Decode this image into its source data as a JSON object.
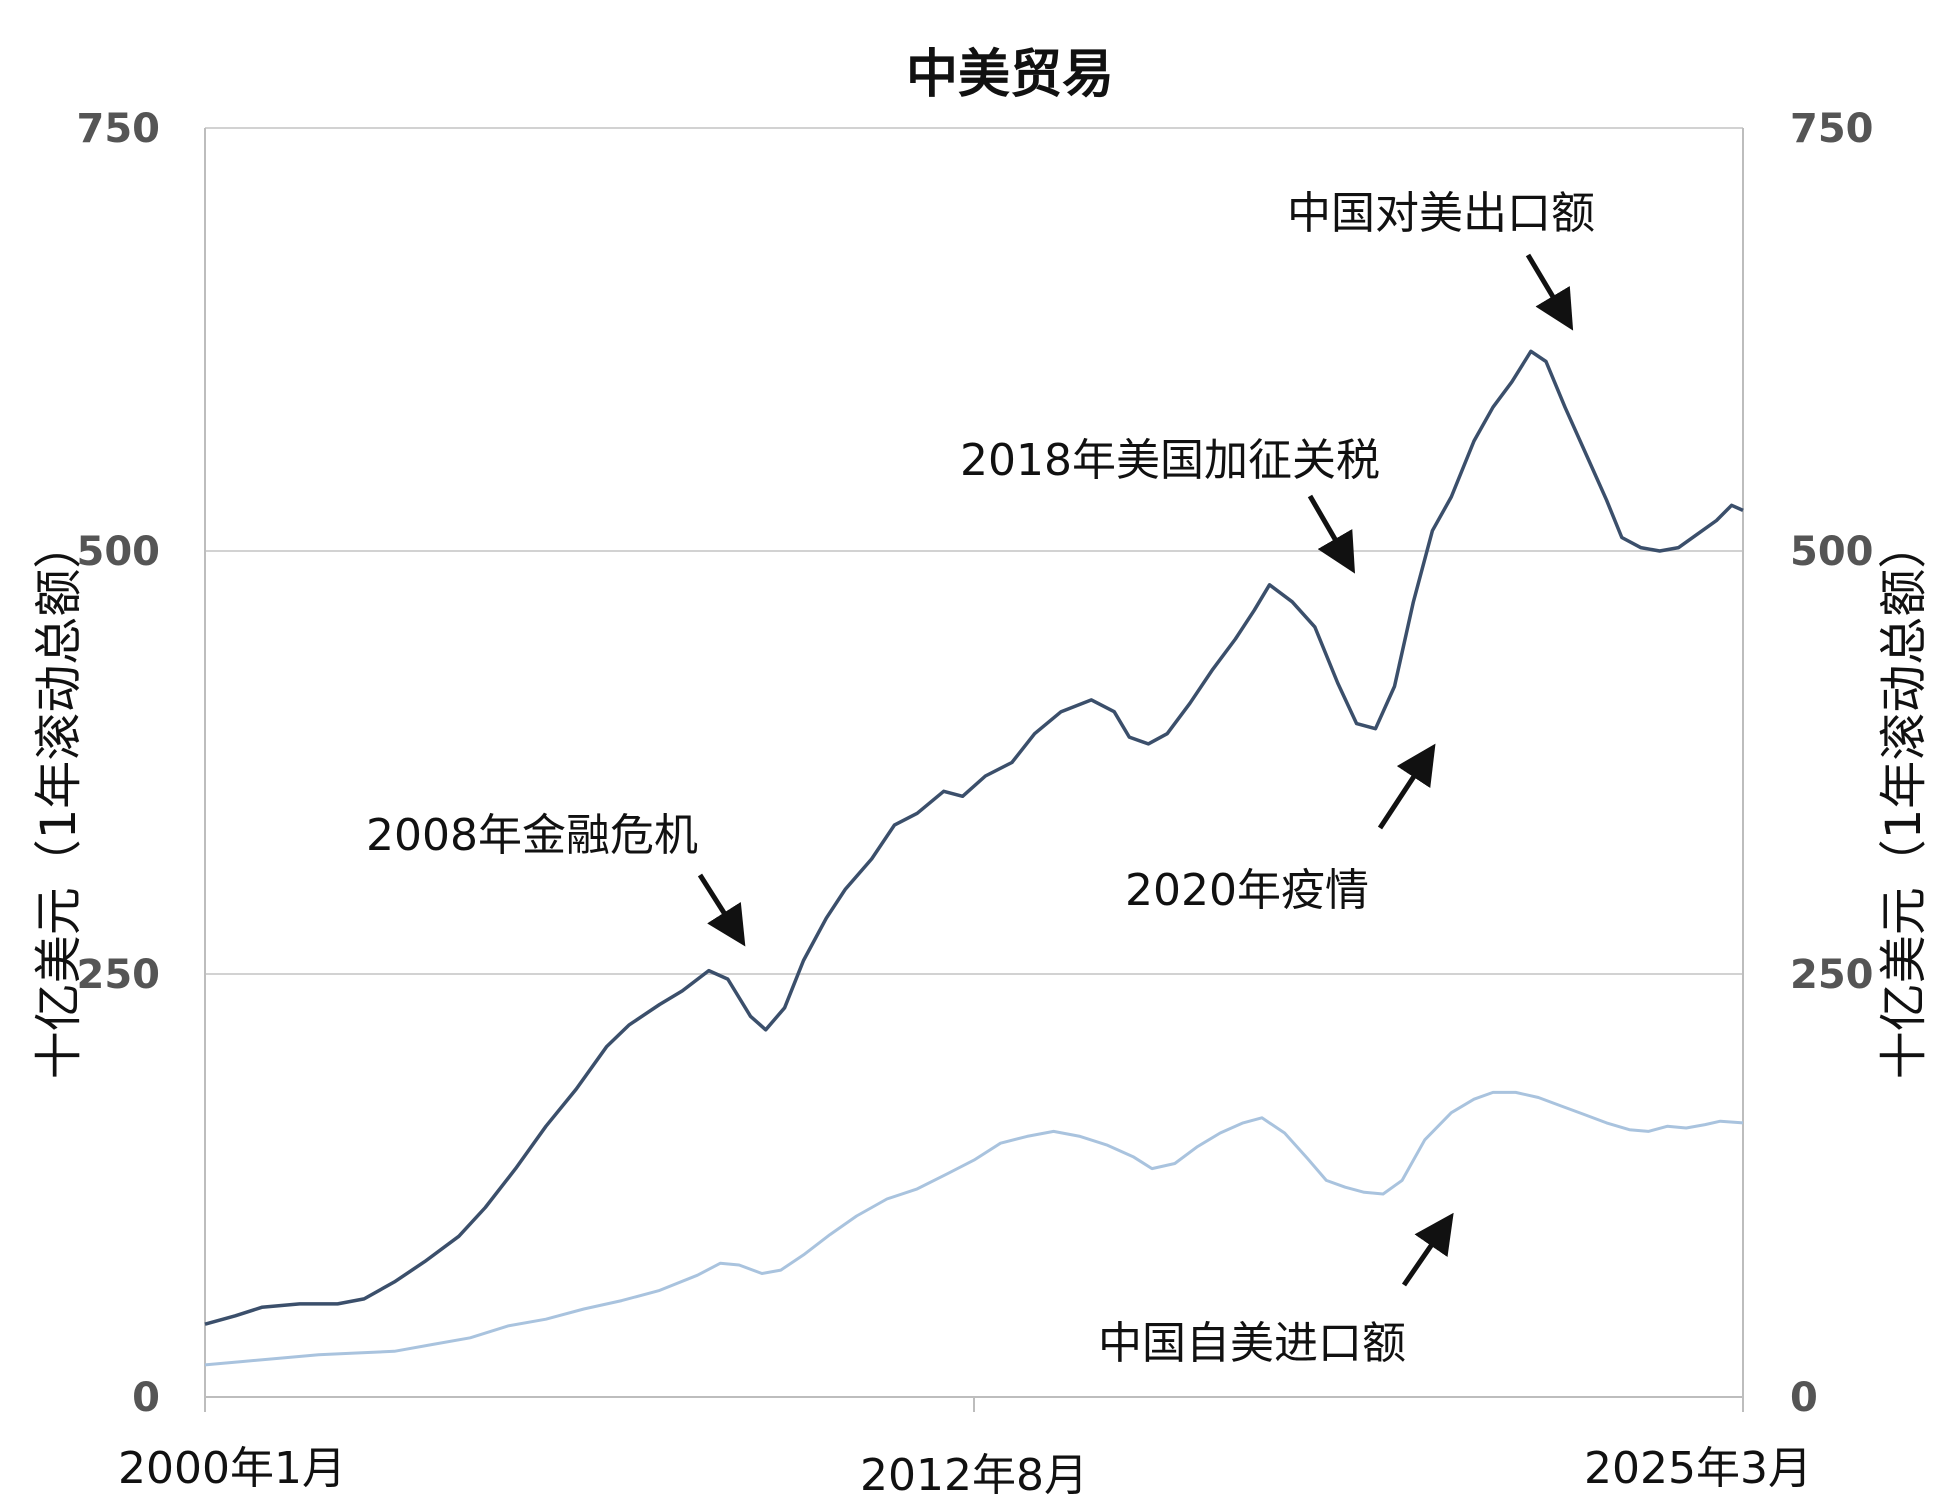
{
  "chart_data": {
    "type": "line",
    "title": "中美贸易",
    "ylabel_left": "十亿美元（1年滚动总额）",
    "ylabel_right": "十亿美元（1年滚动总额）",
    "ylim": [
      0,
      750
    ],
    "yticks": [
      0,
      250,
      500,
      750
    ],
    "grid": true,
    "x_tick_labels": [
      "2000年1月",
      "2012年8月",
      "2025年3月"
    ],
    "series": [
      {
        "name": "中国对美出口额",
        "color": "#3b4f6b",
        "points": [
          [
            2000.0,
            43
          ],
          [
            2000.8,
            48
          ],
          [
            2001.5,
            53
          ],
          [
            2002.5,
            55
          ],
          [
            2003.5,
            55
          ],
          [
            2004.2,
            58
          ],
          [
            2005.0,
            68
          ],
          [
            2005.8,
            80
          ],
          [
            2006.7,
            95
          ],
          [
            2007.4,
            112
          ],
          [
            2008.2,
            135
          ],
          [
            2009.0,
            160
          ],
          [
            2009.8,
            182
          ],
          [
            2010.6,
            207
          ],
          [
            2011.2,
            220
          ],
          [
            2012.0,
            232
          ],
          [
            2012.6,
            240
          ],
          [
            2013.3,
            252
          ],
          [
            2013.8,
            247
          ],
          [
            2014.4,
            225
          ],
          [
            2014.8,
            217
          ],
          [
            2015.3,
            230
          ],
          [
            2015.8,
            258
          ],
          [
            2016.4,
            283
          ],
          [
            2016.9,
            300
          ],
          [
            2017.6,
            318
          ],
          [
            2018.2,
            338
          ],
          [
            2018.8,
            345
          ],
          [
            2019.5,
            358
          ],
          [
            2020.0,
            355
          ],
          [
            2020.6,
            367
          ],
          [
            2021.3,
            375
          ],
          [
            2021.9,
            392
          ],
          [
            2022.6,
            405
          ],
          [
            2023.4,
            412
          ],
          [
            2024.0,
            405
          ],
          [
            2024.4,
            390
          ],
          [
            2024.9,
            386
          ],
          [
            2025.4,
            392
          ],
          [
            2026.0,
            410
          ],
          [
            2026.6,
            430
          ],
          [
            2027.2,
            448
          ],
          [
            2027.7,
            465
          ],
          [
            2028.1,
            480
          ],
          [
            2028.7,
            470
          ],
          [
            2029.3,
            455
          ],
          [
            2029.9,
            422
          ],
          [
            2030.4,
            398
          ],
          [
            2030.9,
            395
          ],
          [
            2031.4,
            420
          ],
          [
            2031.9,
            470
          ],
          [
            2032.4,
            512
          ],
          [
            2032.9,
            532
          ],
          [
            2033.5,
            565
          ],
          [
            2034.0,
            585
          ],
          [
            2034.5,
            600
          ],
          [
            2035.0,
            618
          ],
          [
            2035.4,
            612
          ],
          [
            2035.9,
            585
          ],
          [
            2036.5,
            555
          ],
          [
            2037.0,
            530
          ],
          [
            2037.4,
            508
          ],
          [
            2037.9,
            502
          ],
          [
            2038.4,
            500
          ],
          [
            2038.9,
            502
          ],
          [
            2039.4,
            510
          ],
          [
            2039.9,
            518
          ],
          [
            2040.3,
            527
          ],
          [
            2040.6,
            524
          ]
        ]
      },
      {
        "name": "中国自美进口额",
        "color": "#a9c3de",
        "points": [
          [
            2000.0,
            19
          ],
          [
            2001.0,
            21
          ],
          [
            2002.0,
            23
          ],
          [
            2003.0,
            25
          ],
          [
            2004.0,
            26
          ],
          [
            2005.0,
            27
          ],
          [
            2006.0,
            31
          ],
          [
            2007.0,
            35
          ],
          [
            2008.0,
            42
          ],
          [
            2009.0,
            46
          ],
          [
            2010.0,
            52
          ],
          [
            2011.0,
            57
          ],
          [
            2012.0,
            63
          ],
          [
            2013.0,
            72
          ],
          [
            2013.6,
            79
          ],
          [
            2014.1,
            78
          ],
          [
            2014.7,
            73
          ],
          [
            2015.2,
            75
          ],
          [
            2015.8,
            84
          ],
          [
            2016.5,
            96
          ],
          [
            2017.2,
            107
          ],
          [
            2018.0,
            117
          ],
          [
            2018.8,
            123
          ],
          [
            2019.6,
            132
          ],
          [
            2020.3,
            140
          ],
          [
            2021.0,
            150
          ],
          [
            2021.7,
            154
          ],
          [
            2022.4,
            157
          ],
          [
            2023.1,
            154
          ],
          [
            2023.8,
            149
          ],
          [
            2024.5,
            142
          ],
          [
            2025.0,
            135
          ],
          [
            2025.6,
            138
          ],
          [
            2026.2,
            148
          ],
          [
            2026.8,
            156
          ],
          [
            2027.4,
            162
          ],
          [
            2027.9,
            165
          ],
          [
            2028.5,
            156
          ],
          [
            2029.1,
            141
          ],
          [
            2029.6,
            128
          ],
          [
            2030.1,
            124
          ],
          [
            2030.6,
            121
          ],
          [
            2031.1,
            120
          ],
          [
            2031.6,
            128
          ],
          [
            2032.2,
            152
          ],
          [
            2032.9,
            168
          ],
          [
            2033.5,
            176
          ],
          [
            2034.0,
            180
          ],
          [
            2034.6,
            180
          ],
          [
            2035.2,
            177
          ],
          [
            2035.8,
            172
          ],
          [
            2036.4,
            167
          ],
          [
            2037.0,
            162
          ],
          [
            2037.6,
            158
          ],
          [
            2038.1,
            157
          ],
          [
            2038.6,
            160
          ],
          [
            2039.1,
            159
          ],
          [
            2039.6,
            161
          ],
          [
            2040.0,
            163
          ],
          [
            2040.6,
            162
          ]
        ]
      }
    ],
    "annotations": [
      {
        "id": "fin_crisis",
        "text": "2008年金融危机"
      },
      {
        "id": "tariff",
        "text": "2018年美国加征关税"
      },
      {
        "id": "covid",
        "text": "2020年疫情"
      },
      {
        "id": "exports",
        "text": "中国对美出口额"
      },
      {
        "id": "imports",
        "text": "中国自美进口额"
      }
    ]
  }
}
